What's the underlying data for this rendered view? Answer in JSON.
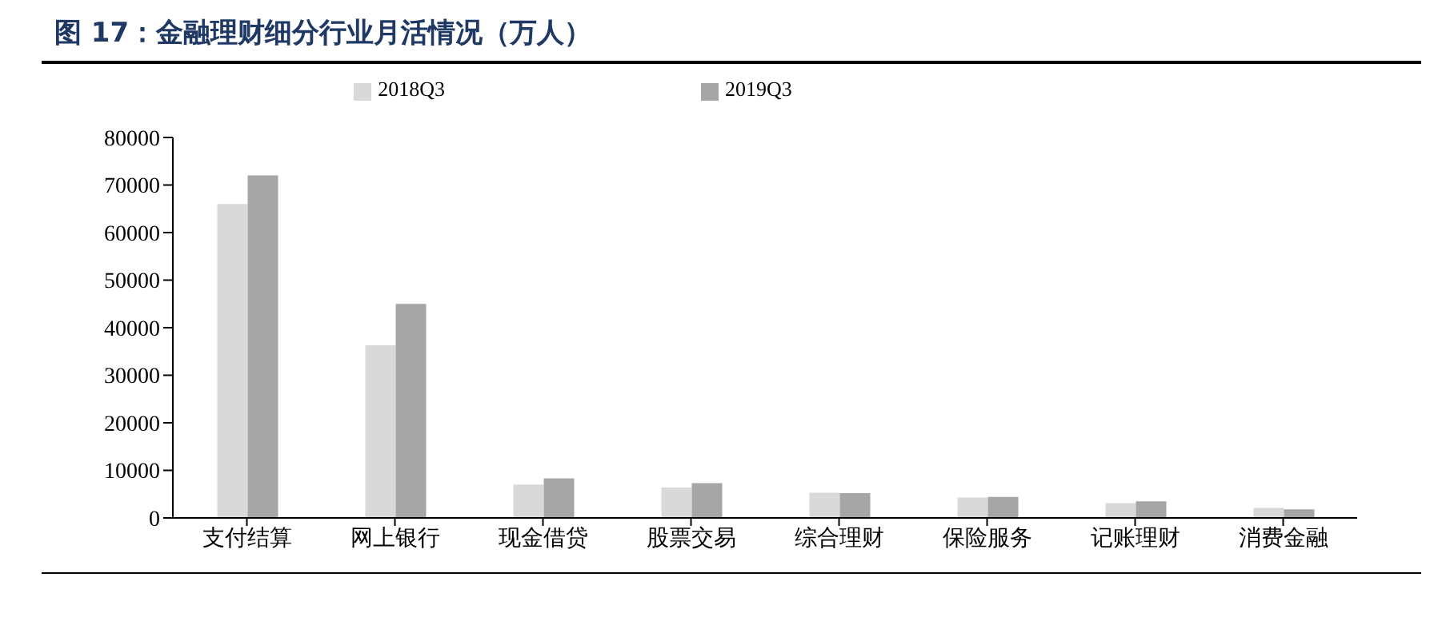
{
  "chart_data": {
    "type": "bar",
    "title": "图 17：金融理财细分行业月活情况（万人）",
    "categories": [
      "支付结算",
      "网上银行",
      "现金借贷",
      "股票交易",
      "综合理财",
      "保险服务",
      "记账理财",
      "消费金融"
    ],
    "series": [
      {
        "name": "2018Q3",
        "color": "#d9d9d9",
        "values": [
          66000,
          36300,
          7000,
          6400,
          5300,
          4300,
          3100,
          2100
        ]
      },
      {
        "name": "2019Q3",
        "color": "#a6a6a6",
        "values": [
          72000,
          45000,
          8300,
          7300,
          5200,
          4400,
          3500,
          1800
        ]
      }
    ],
    "ylim": [
      0,
      80000
    ],
    "yticks": [
      0,
      10000,
      20000,
      30000,
      40000,
      50000,
      60000,
      70000,
      80000
    ],
    "grid": false,
    "legend": "top"
  }
}
